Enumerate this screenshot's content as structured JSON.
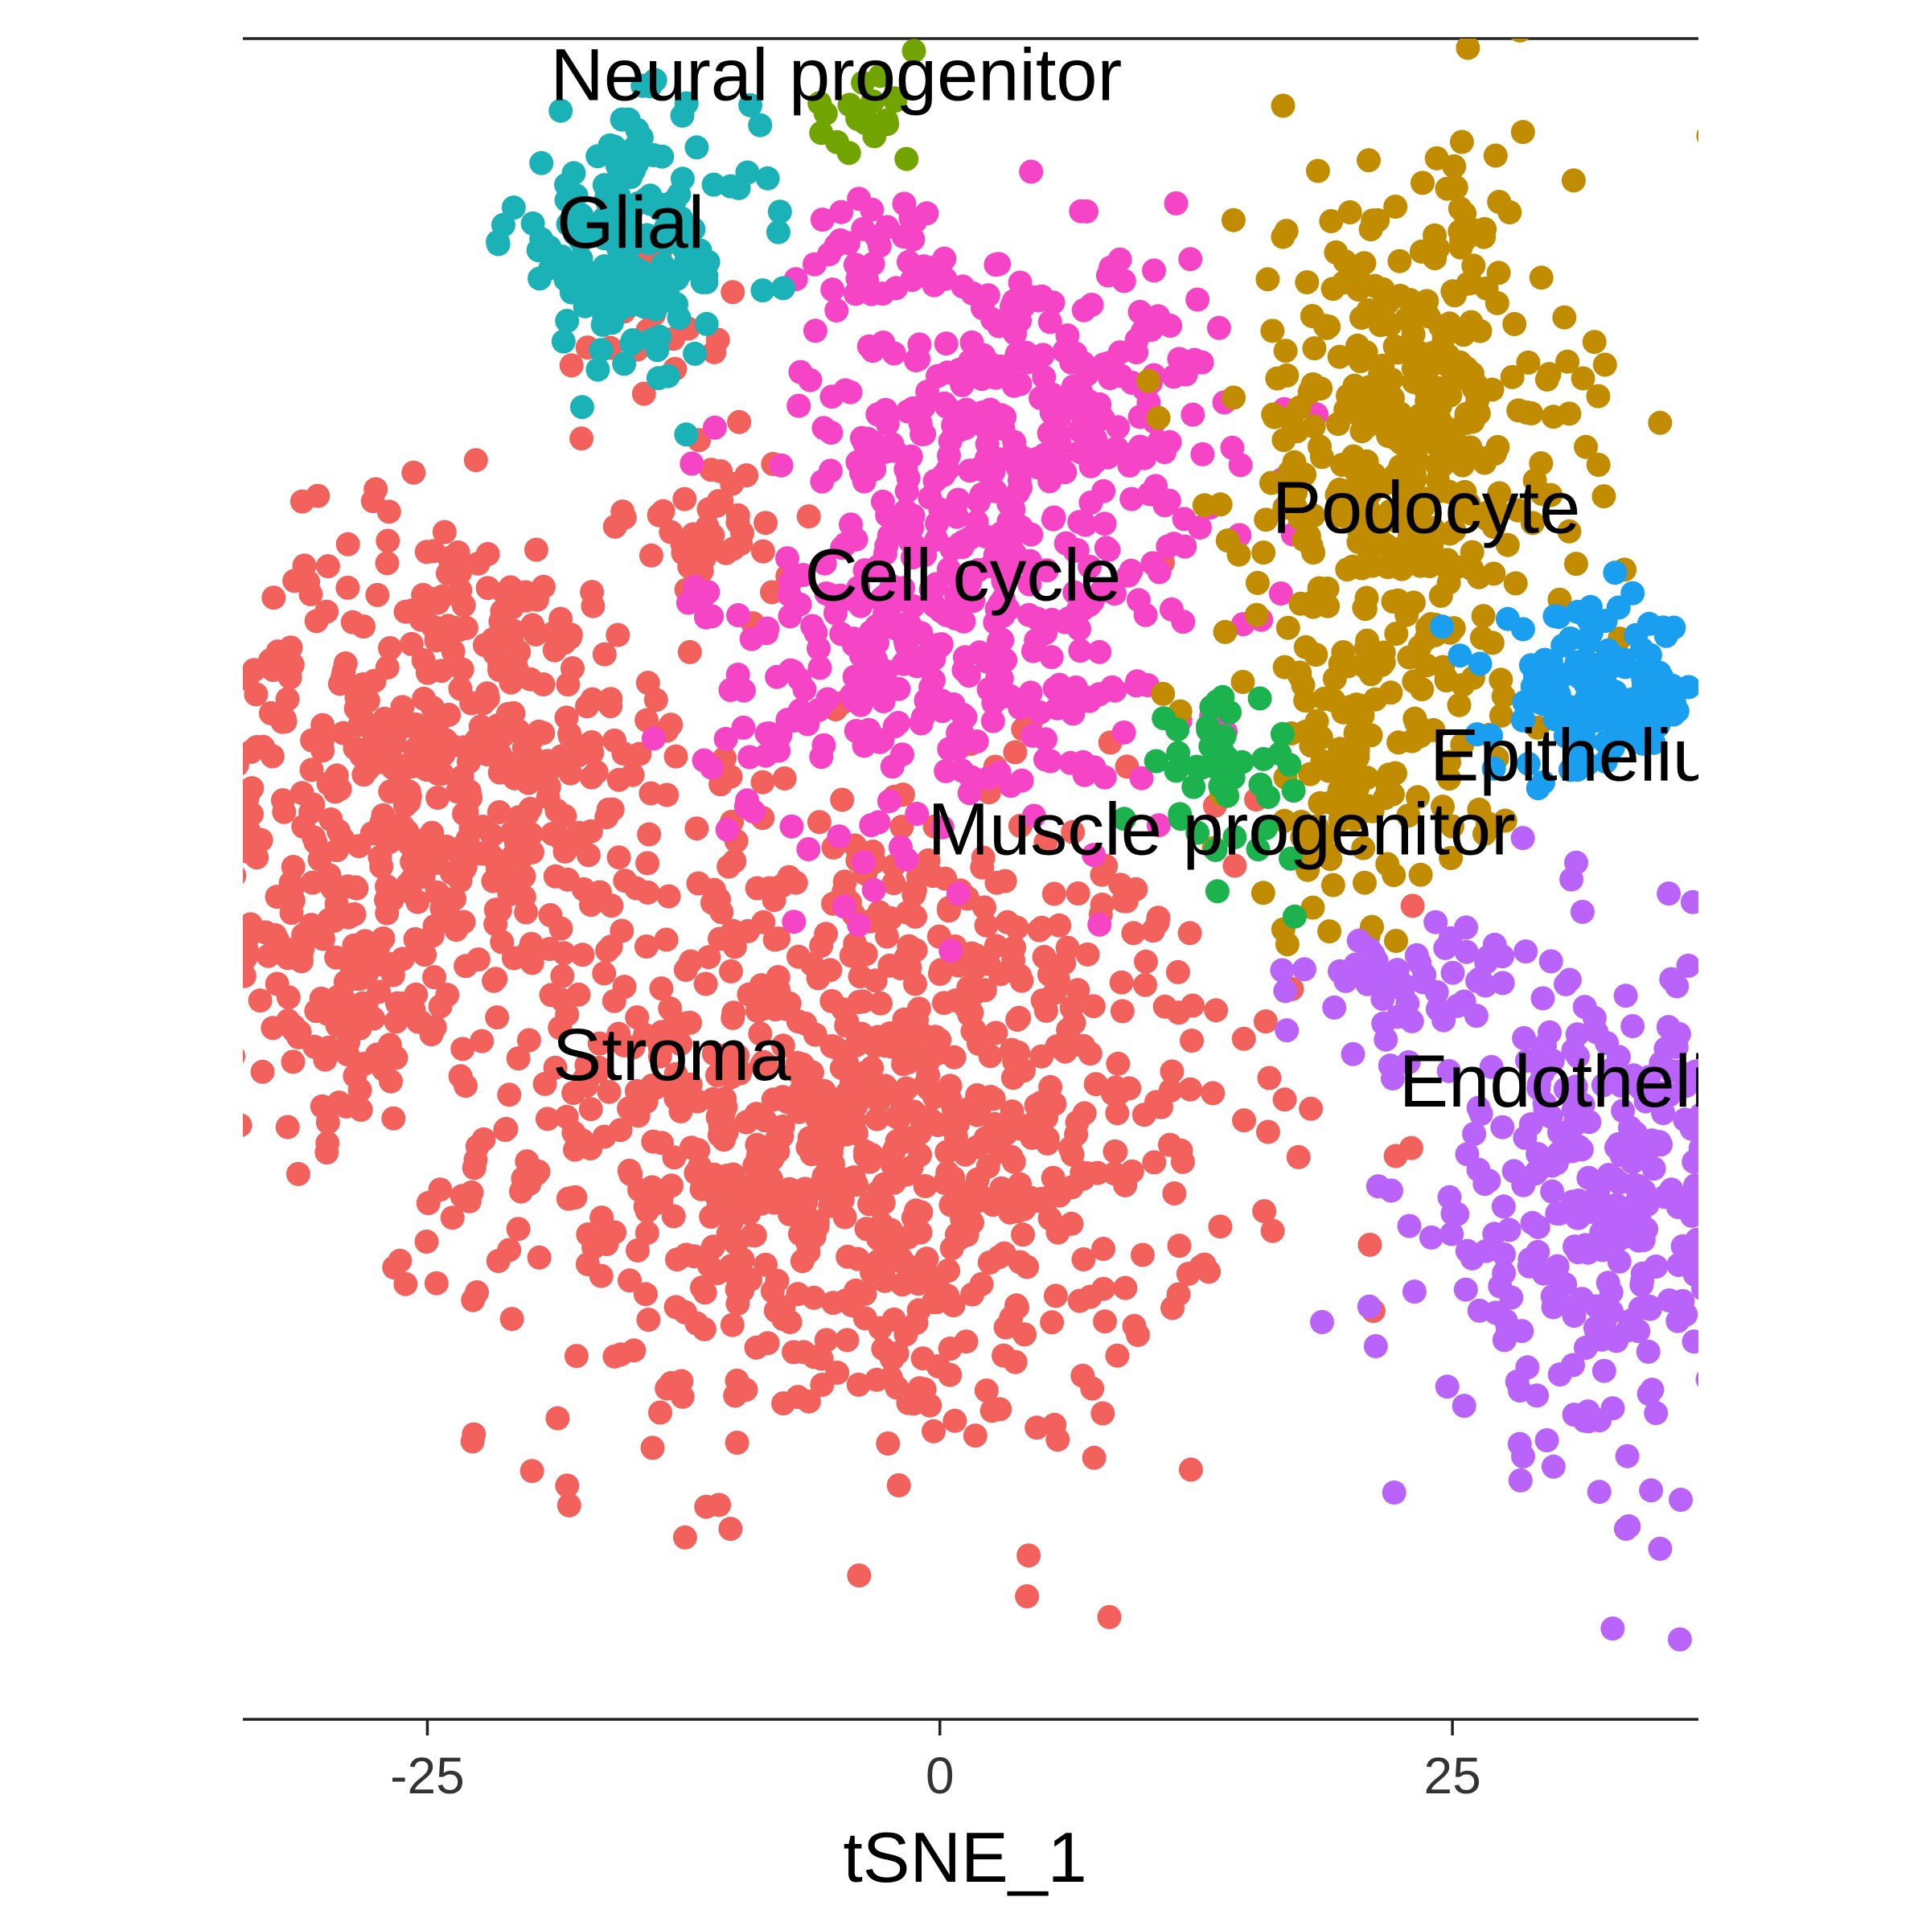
{
  "chart_data": {
    "type": "scatter",
    "title": "",
    "xlabel": "tSNE_1",
    "ylabel": "",
    "xlim": [
      -34,
      37
    ],
    "ylim": [
      -42,
      40
    ],
    "xticks": [
      -25,
      0,
      25
    ],
    "tick_labels": [
      "-25",
      "0",
      "25"
    ],
    "grid": false,
    "legend": "none",
    "series": [
      {
        "name": "Stroma",
        "color": "#F2615B",
        "clusters": [
          {
            "cx": -4,
            "cy": -13,
            "sx": 9,
            "sy": 8,
            "n": 900
          },
          {
            "cx": -24,
            "cy": 5,
            "sx": 6,
            "sy": 6,
            "n": 450
          },
          {
            "cx": -30,
            "cy": -6,
            "sx": 3,
            "sy": 4,
            "n": 120
          },
          {
            "cx": -11,
            "cy": 16,
            "sx": 2,
            "sy": 2,
            "n": 40
          },
          {
            "cx": -14,
            "cy": 27,
            "sx": 2,
            "sy": 2,
            "n": 20
          }
        ]
      },
      {
        "name": "Cell cycle",
        "color": "#F545C6",
        "clusters": [
          {
            "cx": 4,
            "cy": 22,
            "sx": 5,
            "sy": 4,
            "n": 280
          },
          {
            "cx": 0,
            "cy": 10,
            "sx": 6,
            "sy": 5,
            "n": 320
          },
          {
            "cx": -3,
            "cy": 30,
            "sx": 1.5,
            "sy": 1,
            "n": 25
          }
        ]
      },
      {
        "name": "Podocyte",
        "color": "#C28C00",
        "clusters": [
          {
            "cx": 23,
            "cy": 20,
            "sx": 4,
            "sy": 7,
            "n": 420
          },
          {
            "cx": 20,
            "cy": 4,
            "sx": 3,
            "sy": 4,
            "n": 100
          }
        ]
      },
      {
        "name": "Glial",
        "color": "#1AB2B6",
        "clusters": [
          {
            "cx": -15,
            "cy": 30,
            "sx": 3,
            "sy": 3,
            "n": 160
          }
        ]
      },
      {
        "name": "Neural progenitor",
        "color": "#72A400",
        "clusters": [
          {
            "cx": -4,
            "cy": 36,
            "sx": 1.5,
            "sy": 1.2,
            "n": 20
          }
        ]
      },
      {
        "name": "Muscle progenitor",
        "color": "#1CB34E",
        "clusters": [
          {
            "cx": 14,
            "cy": 4,
            "sx": 2,
            "sy": 2,
            "n": 45
          }
        ]
      },
      {
        "name": "Epithelium",
        "color": "#1A9EF0",
        "clusters": [
          {
            "cx": 32,
            "cy": 8,
            "sx": 2.5,
            "sy": 2,
            "n": 140
          }
        ]
      },
      {
        "name": "Endothelial",
        "color": "#BA63FA",
        "clusters": [
          {
            "cx": 32,
            "cy": -17,
            "sx": 4,
            "sy": 6,
            "n": 300
          },
          {
            "cx": 23,
            "cy": -6,
            "sx": 2.5,
            "sy": 1.5,
            "n": 50
          }
        ]
      }
    ],
    "annotations": [
      {
        "text": "Neural progenitor",
        "x": -19,
        "y": 37
      },
      {
        "text": "Glial",
        "x": -18.7,
        "y": 29.8
      },
      {
        "text": "Podocyte",
        "x": 16.2,
        "y": 15.9
      },
      {
        "text": "Cell cycle",
        "x": -6.6,
        "y": 12.6
      },
      {
        "text": "Epithelium",
        "x": 23.9,
        "y": 3.8
      },
      {
        "text": "Muscle progenitor",
        "x": -0.6,
        "y": 0.2
      },
      {
        "text": "Stroma",
        "x": -18.9,
        "y": -10.8
      },
      {
        "text": "Endothelial",
        "x": 22.4,
        "y": -12.1
      }
    ]
  }
}
